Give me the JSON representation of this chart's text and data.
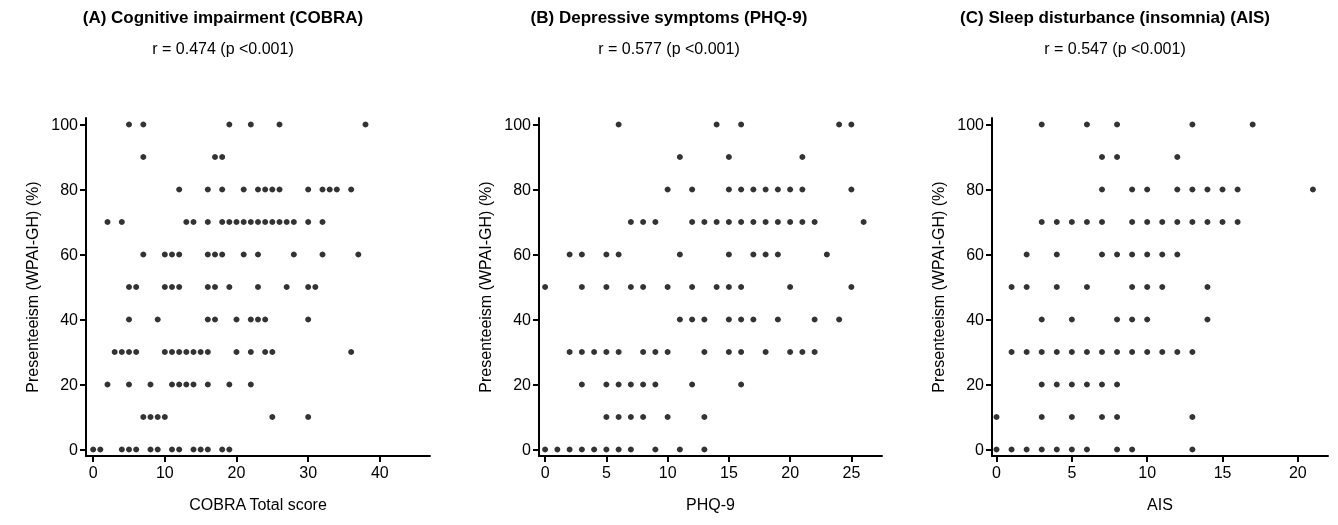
{
  "chart_data": [
    {
      "type": "scatter",
      "title": "(A) Cognitive impairment (COBRA)",
      "subtitle": "r = 0.474 (p <0.001)",
      "xlabel": "COBRA Total score",
      "ylabel": "Presenteeism (WPAI-GH) (%)",
      "color": "#000000",
      "marker": "circle",
      "grid": false,
      "xlim": [
        -1,
        47
      ],
      "ylim": [
        -2,
        102
      ],
      "xticks": [
        0,
        10,
        20,
        30,
        40
      ],
      "yticks": [
        0,
        20,
        40,
        60,
        80,
        100
      ],
      "x": [
        5,
        7,
        19,
        22,
        26,
        38,
        7,
        17,
        18,
        12,
        16,
        18,
        21,
        23,
        24,
        25,
        26,
        30,
        32,
        33,
        34,
        36,
        2,
        4,
        13,
        14,
        16,
        18,
        19,
        20,
        21,
        22,
        23,
        24,
        25,
        26,
        27,
        28,
        30,
        32,
        7,
        10,
        11,
        12,
        16,
        17,
        18,
        21,
        23,
        28,
        32,
        37,
        5,
        6,
        10,
        11,
        12,
        16,
        17,
        19,
        23,
        27,
        30,
        31,
        5,
        9,
        16,
        17,
        20,
        22,
        23,
        24,
        30,
        3,
        4,
        5,
        6,
        10,
        11,
        12,
        13,
        14,
        15,
        16,
        20,
        22,
        24,
        25,
        36,
        2,
        5,
        8,
        11,
        12,
        13,
        14,
        16,
        19,
        22,
        7,
        8,
        9,
        10,
        25,
        30,
        0,
        1,
        4,
        5,
        6,
        8,
        9,
        11,
        12,
        14,
        15,
        16,
        18,
        19
      ],
      "values": [
        100,
        100,
        100,
        100,
        100,
        100,
        90,
        90,
        90,
        80,
        80,
        80,
        80,
        80,
        80,
        80,
        80,
        80,
        80,
        80,
        80,
        80,
        70,
        70,
        70,
        70,
        70,
        70,
        70,
        70,
        70,
        70,
        70,
        70,
        70,
        70,
        70,
        70,
        70,
        70,
        60,
        60,
        60,
        60,
        60,
        60,
        60,
        60,
        60,
        60,
        60,
        60,
        50,
        50,
        50,
        50,
        50,
        50,
        50,
        50,
        50,
        50,
        50,
        50,
        40,
        40,
        40,
        40,
        40,
        40,
        40,
        40,
        40,
        30,
        30,
        30,
        30,
        30,
        30,
        30,
        30,
        30,
        30,
        30,
        30,
        30,
        30,
        30,
        30,
        20,
        20,
        20,
        20,
        20,
        20,
        20,
        20,
        20,
        20,
        10,
        10,
        10,
        10,
        10,
        10,
        0,
        0,
        0,
        0,
        0,
        0,
        0,
        0,
        0,
        0,
        0,
        0,
        0,
        0
      ]
    },
    {
      "type": "scatter",
      "title": "(B) Depressive symptoms (PHQ-9)",
      "subtitle": "r = 0.577 (p <0.001)",
      "xlabel": "PHQ-9",
      "ylabel": "Presenteeism (WPAI-GH) (%)",
      "color": "#000000",
      "marker": "circle",
      "grid": false,
      "xlim": [
        -0.5,
        27.5
      ],
      "ylim": [
        -2,
        102
      ],
      "xticks": [
        0,
        5,
        10,
        15,
        20,
        25
      ],
      "yticks": [
        0,
        20,
        40,
        60,
        80,
        100
      ],
      "x": [
        6,
        14,
        16,
        24,
        25,
        11,
        15,
        21,
        10,
        12,
        15,
        16,
        17,
        18,
        19,
        20,
        21,
        25,
        7,
        8,
        9,
        12,
        13,
        14,
        15,
        16,
        17,
        18,
        19,
        20,
        21,
        22,
        26,
        2,
        3,
        5,
        6,
        11,
        15,
        17,
        18,
        19,
        23,
        0,
        3,
        5,
        7,
        8,
        10,
        12,
        14,
        15,
        16,
        20,
        25,
        11,
        12,
        13,
        15,
        16,
        17,
        19,
        22,
        24,
        2,
        3,
        4,
        5,
        6,
        8,
        9,
        10,
        13,
        15,
        16,
        18,
        20,
        21,
        22,
        3,
        5,
        6,
        7,
        8,
        9,
        12,
        16,
        5,
        6,
        7,
        8,
        10,
        13,
        0,
        1,
        2,
        3,
        4,
        5,
        6,
        7,
        9,
        11,
        13
      ],
      "values": [
        100,
        100,
        100,
        100,
        100,
        90,
        90,
        90,
        80,
        80,
        80,
        80,
        80,
        80,
        80,
        80,
        80,
        80,
        70,
        70,
        70,
        70,
        70,
        70,
        70,
        70,
        70,
        70,
        70,
        70,
        70,
        70,
        70,
        60,
        60,
        60,
        60,
        60,
        60,
        60,
        60,
        60,
        60,
        50,
        50,
        50,
        50,
        50,
        50,
        50,
        50,
        50,
        50,
        50,
        50,
        40,
        40,
        40,
        40,
        40,
        40,
        40,
        40,
        40,
        30,
        30,
        30,
        30,
        30,
        30,
        30,
        30,
        30,
        30,
        30,
        30,
        30,
        30,
        30,
        20,
        20,
        20,
        20,
        20,
        20,
        20,
        20,
        10,
        10,
        10,
        10,
        10,
        10,
        0,
        0,
        0,
        0,
        0,
        0,
        0,
        0,
        0,
        0,
        0
      ]
    },
    {
      "type": "scatter",
      "title": "(C) Sleep disturbance (insomnia) (AIS)",
      "subtitle": "r = 0.547 (p <0.001)",
      "xlabel": "AIS",
      "ylabel": "Presenteeism (WPAI-GH) (%)",
      "color": "#000000",
      "marker": "circle",
      "grid": false,
      "xlim": [
        -0.3,
        22
      ],
      "ylim": [
        -2,
        102
      ],
      "xticks": [
        0,
        5,
        10,
        15,
        20
      ],
      "yticks": [
        0,
        20,
        40,
        60,
        80,
        100
      ],
      "x": [
        3,
        6,
        8,
        13,
        17,
        7,
        8,
        12,
        7,
        9,
        10,
        12,
        13,
        14,
        15,
        16,
        21,
        3,
        4,
        5,
        6,
        7,
        9,
        10,
        11,
        12,
        13,
        14,
        15,
        16,
        2,
        4,
        7,
        8,
        9,
        10,
        11,
        12,
        1,
        2,
        4,
        6,
        9,
        10,
        11,
        14,
        3,
        5,
        8,
        9,
        10,
        14,
        1,
        2,
        3,
        4,
        5,
        6,
        7,
        8,
        9,
        10,
        11,
        12,
        13,
        3,
        4,
        5,
        6,
        7,
        8,
        0,
        3,
        5,
        7,
        8,
        13,
        0,
        1,
        2,
        3,
        4,
        5,
        6,
        8,
        9,
        13
      ],
      "values": [
        100,
        100,
        100,
        100,
        100,
        90,
        90,
        90,
        80,
        80,
        80,
        80,
        80,
        80,
        80,
        80,
        80,
        70,
        70,
        70,
        70,
        70,
        70,
        70,
        70,
        70,
        70,
        70,
        70,
        70,
        60,
        60,
        60,
        60,
        60,
        60,
        60,
        60,
        50,
        50,
        50,
        50,
        50,
        50,
        50,
        50,
        40,
        40,
        40,
        40,
        40,
        40,
        30,
        30,
        30,
        30,
        30,
        30,
        30,
        30,
        30,
        30,
        30,
        30,
        30,
        20,
        20,
        20,
        20,
        20,
        20,
        10,
        10,
        10,
        10,
        10,
        10,
        0,
        0,
        0,
        0,
        0,
        0,
        0,
        0,
        0,
        0
      ]
    }
  ]
}
